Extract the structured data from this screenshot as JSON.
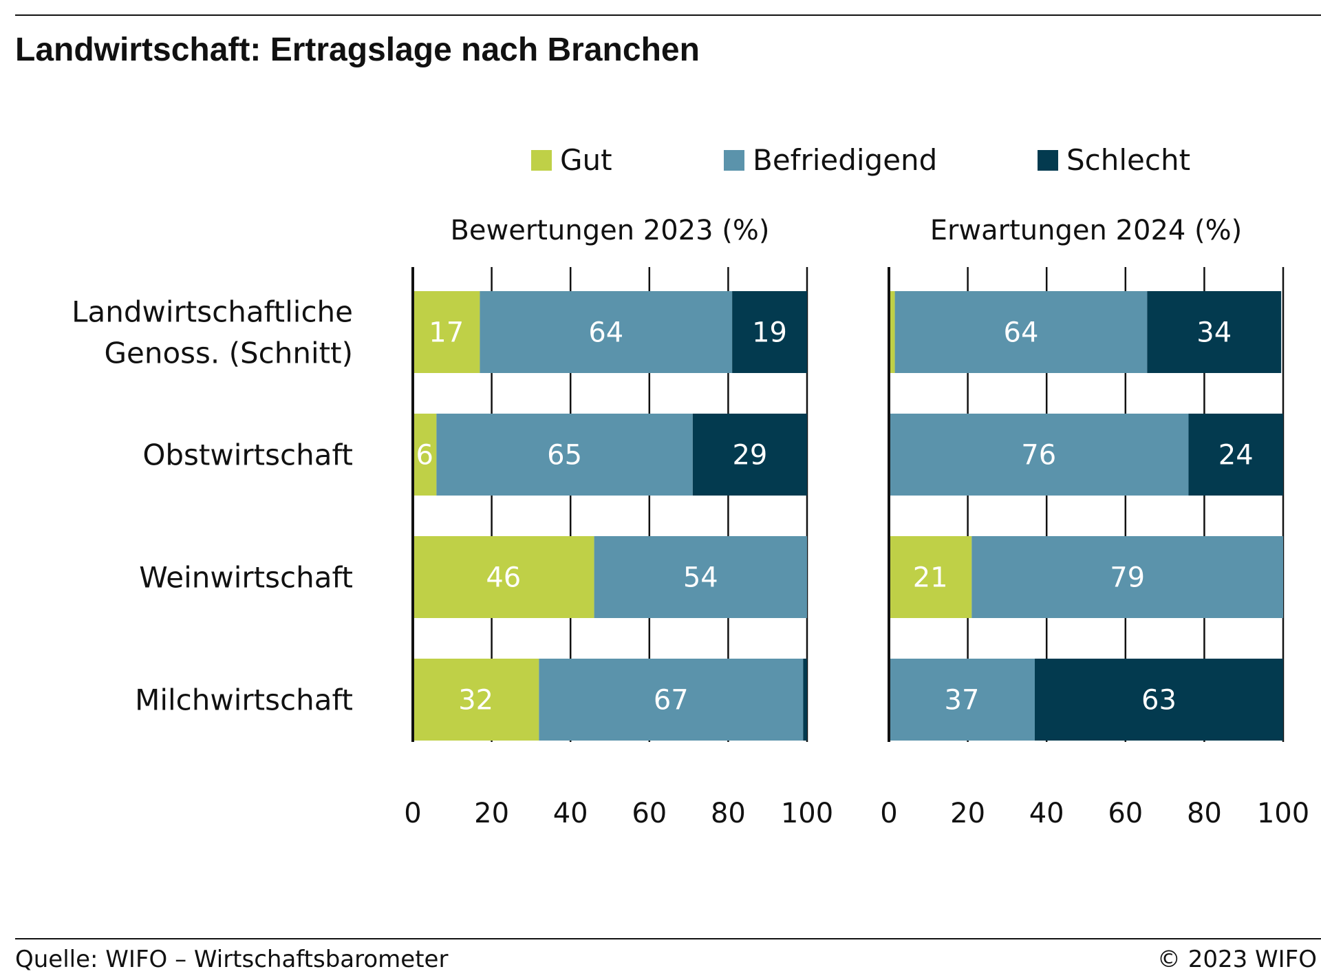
{
  "title": "Landwirtschaft: Ertragslage nach Branchen",
  "legend": [
    {
      "label": "Gut",
      "color": "#bfd047"
    },
    {
      "label": "Befriedigend",
      "color": "#5b93ab"
    },
    {
      "label": "Schlecht",
      "color": "#033a4f"
    }
  ],
  "chart_data": {
    "type": "bar",
    "orientation": "horizontal",
    "stacked": true,
    "categories": [
      "Landwirtschaftliche Genoss. (Schnitt)",
      "Obstwirtschaft",
      "Weinwirtschaft",
      "Milchwirtschaft"
    ],
    "category_lines": [
      [
        "Landwirtschaftliche",
        "Genoss. (Schnitt)"
      ],
      [
        "Obstwirtschaft"
      ],
      [
        "Weinwirtschaft"
      ],
      [
        "Milchwirtschaft"
      ]
    ],
    "xlim": [
      0,
      100
    ],
    "ticks": [
      0,
      20,
      40,
      60,
      80,
      100
    ],
    "tick_labels": [
      "0",
      "20",
      "40",
      "60",
      "80",
      "100"
    ],
    "grid": true,
    "panels": [
      {
        "title": "Bewertungen 2023 (%)",
        "series": [
          {
            "name": "Gut",
            "values": [
              17,
              6,
              46,
              32
            ],
            "labels": [
              "17",
              "6",
              "46",
              "32"
            ]
          },
          {
            "name": "Befriedigend",
            "values": [
              64,
              65,
              54,
              67
            ],
            "labels": [
              "64",
              "65",
              "54",
              "67"
            ]
          },
          {
            "name": "Schlecht",
            "values": [
              19,
              29,
              0,
              1
            ],
            "labels": [
              "19",
              "29",
              "",
              ""
            ]
          }
        ]
      },
      {
        "title": "Erwartungen 2024 (%)",
        "series": [
          {
            "name": "Gut",
            "values": [
              1.5,
              0,
              21,
              0
            ],
            "labels": [
              "",
              "",
              "21",
              ""
            ]
          },
          {
            "name": "Befriedigend",
            "values": [
              64,
              76,
              79,
              37
            ],
            "labels": [
              "64",
              "76",
              "79",
              "37"
            ]
          },
          {
            "name": "Schlecht",
            "values": [
              34,
              24,
              0,
              63
            ],
            "labels": [
              "34",
              "24",
              "",
              "63"
            ]
          }
        ]
      }
    ]
  },
  "footer": {
    "source": "Quelle: WIFO – Wirtschaftsbarometer",
    "copyright": "© 2023 WIFO"
  }
}
